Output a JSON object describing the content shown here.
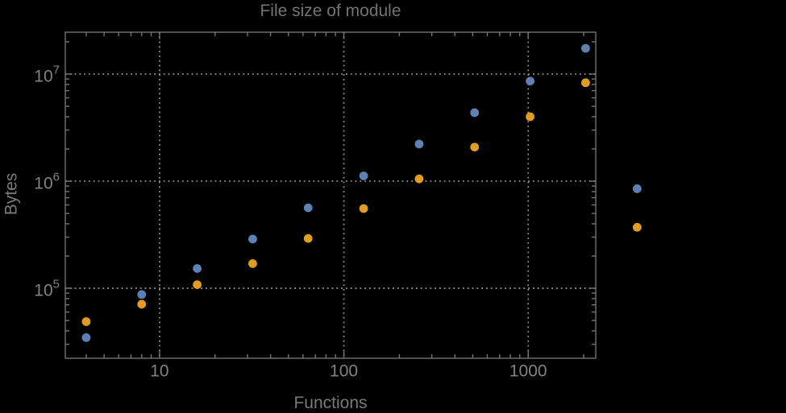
{
  "chart_data": {
    "type": "scatter",
    "title": "File size of module",
    "xlabel": "Functions",
    "ylabel": "Bytes",
    "x_scale": "log",
    "y_scale": "log",
    "legend": "none",
    "x": [
      4,
      8,
      16,
      32,
      64,
      128,
      256,
      512,
      1024,
      2048,
      3900
    ],
    "series": [
      {
        "name": "blue-series",
        "color": "#5E81B5",
        "values": [
          34600,
          87500,
          153000,
          288000,
          564000,
          1120000,
          2220000,
          4360000,
          8600000,
          17400000,
          850000
        ]
      },
      {
        "name": "orange-series",
        "color": "#E19C24",
        "values": [
          48800,
          71000,
          108000,
          170000,
          292000,
          555000,
          1050000,
          2080000,
          4000000,
          8300000,
          371000
        ]
      }
    ],
    "axes": {
      "x": {
        "min": 3.08,
        "max": 2325,
        "ticks": [
          {
            "value": 10,
            "label": "10"
          },
          {
            "value": 100,
            "label": "100"
          },
          {
            "value": 1000,
            "label": "1000"
          }
        ]
      },
      "y": {
        "min": 22200,
        "max": 24600000,
        "ticks": [
          {
            "value": 100000,
            "base": "10",
            "exp": "5"
          },
          {
            "value": 1000000,
            "base": "10",
            "exp": "6"
          },
          {
            "value": 10000000,
            "base": "10",
            "exp": "7"
          }
        ]
      }
    },
    "gridlines": {
      "x": [
        10,
        100,
        1000
      ],
      "y": [
        100000,
        1000000,
        10000000
      ],
      "style": "dotted"
    },
    "colors": {
      "background": "#000000",
      "frame": "#747474",
      "grid": "#909090",
      "tick_label": "#828282",
      "title": "#737373",
      "axis_label": "#7a7a7a"
    }
  }
}
